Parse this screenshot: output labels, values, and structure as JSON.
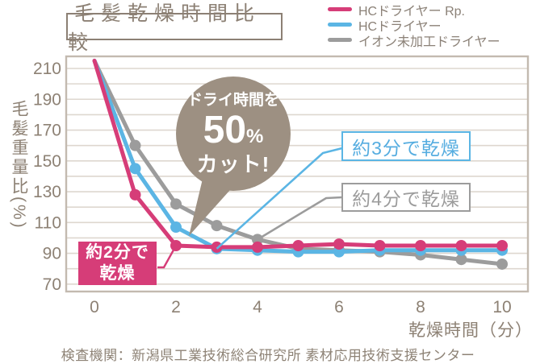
{
  "header": {
    "title": "毛髪乾燥時間比較"
  },
  "legend": {
    "items": [
      {
        "label": "HCドライヤー Rp.",
        "color": "#d63d78"
      },
      {
        "label": "HCドライヤー",
        "color": "#5bb5e4"
      },
      {
        "label": "イオン未加工ドライヤー",
        "color": "#9c9c9c"
      }
    ]
  },
  "axes": {
    "y_title": "毛髪重量比(%)",
    "x_title": "乾燥時間（分）"
  },
  "annotations": {
    "bubble": {
      "line1": "ドライ時間を",
      "big": "50",
      "pct": "%",
      "line3": "カット!"
    },
    "blue_box": {
      "label": "約3分で乾燥",
      "anchor_minute": 3
    },
    "gray_box": {
      "label": "約4分で乾燥",
      "anchor_minute": 4
    },
    "pink_box": {
      "line1": "約2分で",
      "line2": "乾燥",
      "anchor_minute": 2
    }
  },
  "footer": {
    "text": "検査機関：新潟県工業技術総合研究所 素材応用技術支援センター"
  },
  "chart_data": {
    "type": "line",
    "title": "毛髪乾燥時間比較",
    "xlabel": "乾燥時間（分）",
    "ylabel": "毛髪重量比(%)",
    "x": [
      0,
      1,
      2,
      3,
      4,
      5,
      6,
      7,
      8,
      9,
      10
    ],
    "series": [
      {
        "name": "HCドライヤー Rp.",
        "color": "#d63d78",
        "values": [
          215,
          128,
          95,
          94,
          94,
          95,
          96,
          95,
          95,
          95,
          95
        ]
      },
      {
        "name": "HCドライヤー",
        "color": "#5bb5e4",
        "values": [
          215,
          145,
          107,
          93,
          92,
          91,
          91,
          92,
          92,
          92,
          92
        ]
      },
      {
        "name": "イオン未加工ドライヤー",
        "color": "#9c9c9c",
        "values": [
          215,
          160,
          122,
          108,
          99,
          93,
          92,
          91,
          89,
          86,
          83
        ]
      }
    ],
    "xticks": [
      0,
      2,
      4,
      6,
      8,
      10
    ],
    "yticks": [
      70,
      90,
      110,
      130,
      150,
      170,
      190,
      210
    ],
    "ygrid_step": 10,
    "ylim": [
      65,
      218
    ],
    "grid": true,
    "legend_position": "top-right",
    "bubble_color": "#9d9082",
    "tick_color": "#8d8174"
  }
}
